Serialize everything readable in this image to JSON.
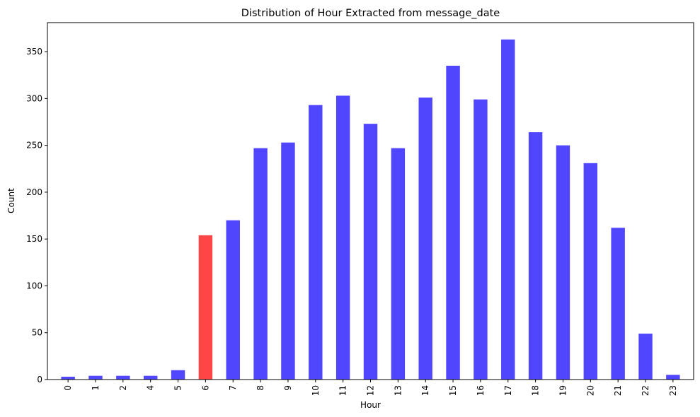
{
  "chart_data": {
    "type": "bar",
    "title": "Distribution of Hour Extracted from message_date",
    "xlabel": "Hour",
    "ylabel": "Count",
    "categories": [
      "0",
      "1",
      "2",
      "4",
      "5",
      "6",
      "7",
      "8",
      "9",
      "10",
      "11",
      "12",
      "13",
      "14",
      "15",
      "16",
      "17",
      "18",
      "19",
      "20",
      "21",
      "22",
      "23"
    ],
    "values": [
      3,
      4,
      4,
      4,
      10,
      154,
      170,
      247,
      253,
      293,
      303,
      273,
      247,
      301,
      335,
      299,
      363,
      264,
      250,
      231,
      162,
      49,
      5
    ],
    "highlight_category": "6",
    "colors": {
      "bar": "#5046fe",
      "highlight": "#fe4646"
    },
    "ylim": [
      0,
      381
    ],
    "yticks": [
      0,
      50,
      100,
      150,
      200,
      250,
      300,
      350
    ],
    "grid": false,
    "x_tick_rotation": "vertical"
  }
}
